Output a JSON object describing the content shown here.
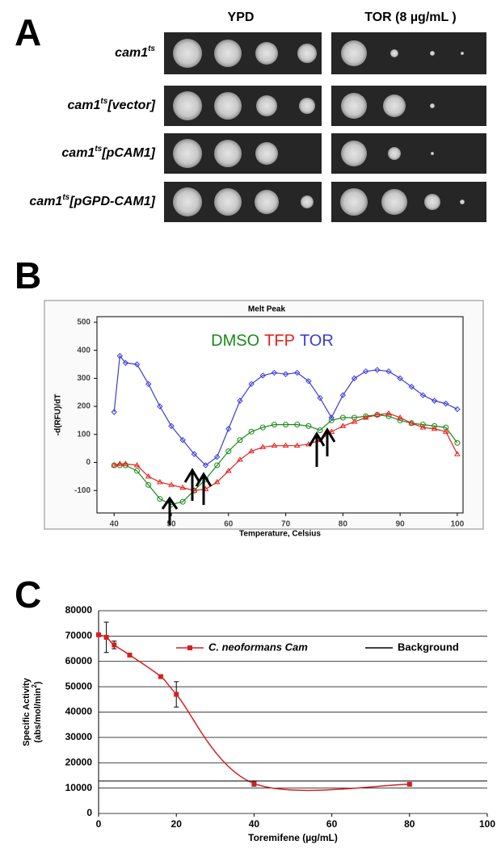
{
  "panel_a": {
    "label": "A",
    "columns": [
      "YPD",
      "TOR (8 µg/mL )"
    ],
    "rows": [
      {
        "base": "cam1",
        "sup": "ts",
        "suffix": ""
      },
      {
        "base": "cam1",
        "sup": "ts",
        "suffix": "[vector]"
      },
      {
        "base": "cam1",
        "sup": "ts",
        "suffix": "[pCAM1]"
      },
      {
        "base": "cam1",
        "sup": "ts",
        "suffix": "[pGPD-CAM1]"
      }
    ]
  },
  "panel_labels": [
    "B",
    "C"
  ],
  "chart_data": [
    {
      "type": "line",
      "title": "Melt Peak",
      "x_label": "Temperature, Celsius",
      "y_label": "-d(RFU)/dT",
      "x": [
        40,
        41,
        42,
        44,
        46,
        48,
        50,
        52,
        54,
        56,
        58,
        60,
        62,
        64,
        66,
        68,
        70,
        72,
        74,
        76,
        78,
        80,
        82,
        84,
        86,
        88,
        90,
        92,
        94,
        96,
        98,
        100
      ],
      "series": [
        {
          "name": "DMSO",
          "color": "#1a8a1a",
          "values": [
            -10,
            -10,
            -10,
            -30,
            -80,
            -130,
            -150,
            -140,
            -100,
            -60,
            -10,
            40,
            80,
            110,
            125,
            135,
            135,
            135,
            130,
            115,
            150,
            160,
            160,
            165,
            170,
            165,
            150,
            140,
            135,
            130,
            125,
            70
          ]
        },
        {
          "name": "TFP",
          "color": "#e8201c",
          "values": [
            -10,
            -5,
            -5,
            -10,
            -50,
            -70,
            -80,
            -90,
            -100,
            -95,
            -70,
            -30,
            10,
            40,
            55,
            60,
            60,
            60,
            65,
            80,
            110,
            130,
            145,
            160,
            170,
            175,
            160,
            140,
            125,
            120,
            110,
            30
          ]
        },
        {
          "name": "TOR",
          "color": "#3b3bdc",
          "values": [
            180,
            380,
            355,
            350,
            280,
            200,
            130,
            80,
            30,
            -10,
            20,
            120,
            220,
            280,
            310,
            320,
            315,
            320,
            290,
            230,
            160,
            240,
            300,
            325,
            330,
            325,
            300,
            270,
            240,
            220,
            210,
            190
          ]
        }
      ],
      "xlim": [
        37,
        101
      ],
      "xticks": [
        40,
        50,
        60,
        70,
        80,
        90,
        100
      ],
      "ylim": [
        -180,
        520
      ],
      "yticks": [
        -100,
        0,
        100,
        200,
        300,
        400,
        500
      ],
      "grid": false
    },
    {
      "type": "scatter_fit",
      "x_label": "Toremifene (µg/mL)",
      "y_label": [
        "Specific Activity",
        {
          "pre": "(abs/mol/min",
          "sup": "2",
          "post": ")"
        }
      ],
      "series": [
        {
          "name": "C. neoformans Cam",
          "color": "#d42020",
          "x": [
            0,
            2,
            4,
            8,
            16,
            20,
            40,
            80
          ],
          "values": [
            70500,
            69500,
            66500,
            62500,
            54000,
            47000,
            11800,
            11500
          ],
          "errors": [
            null,
            6000,
            1500,
            null,
            500,
            5000,
            1000,
            500
          ]
        },
        {
          "name": "Background",
          "color": "#000000",
          "x": [
            0,
            100
          ],
          "values": [
            12800,
            12800
          ]
        }
      ],
      "xlim": [
        0,
        100
      ],
      "xticks": [
        0,
        20,
        40,
        60,
        80,
        100
      ],
      "ylim": [
        0,
        80000
      ],
      "yticks": [
        0,
        10000,
        20000,
        30000,
        40000,
        50000,
        60000,
        70000,
        80000
      ],
      "grid": true
    }
  ]
}
